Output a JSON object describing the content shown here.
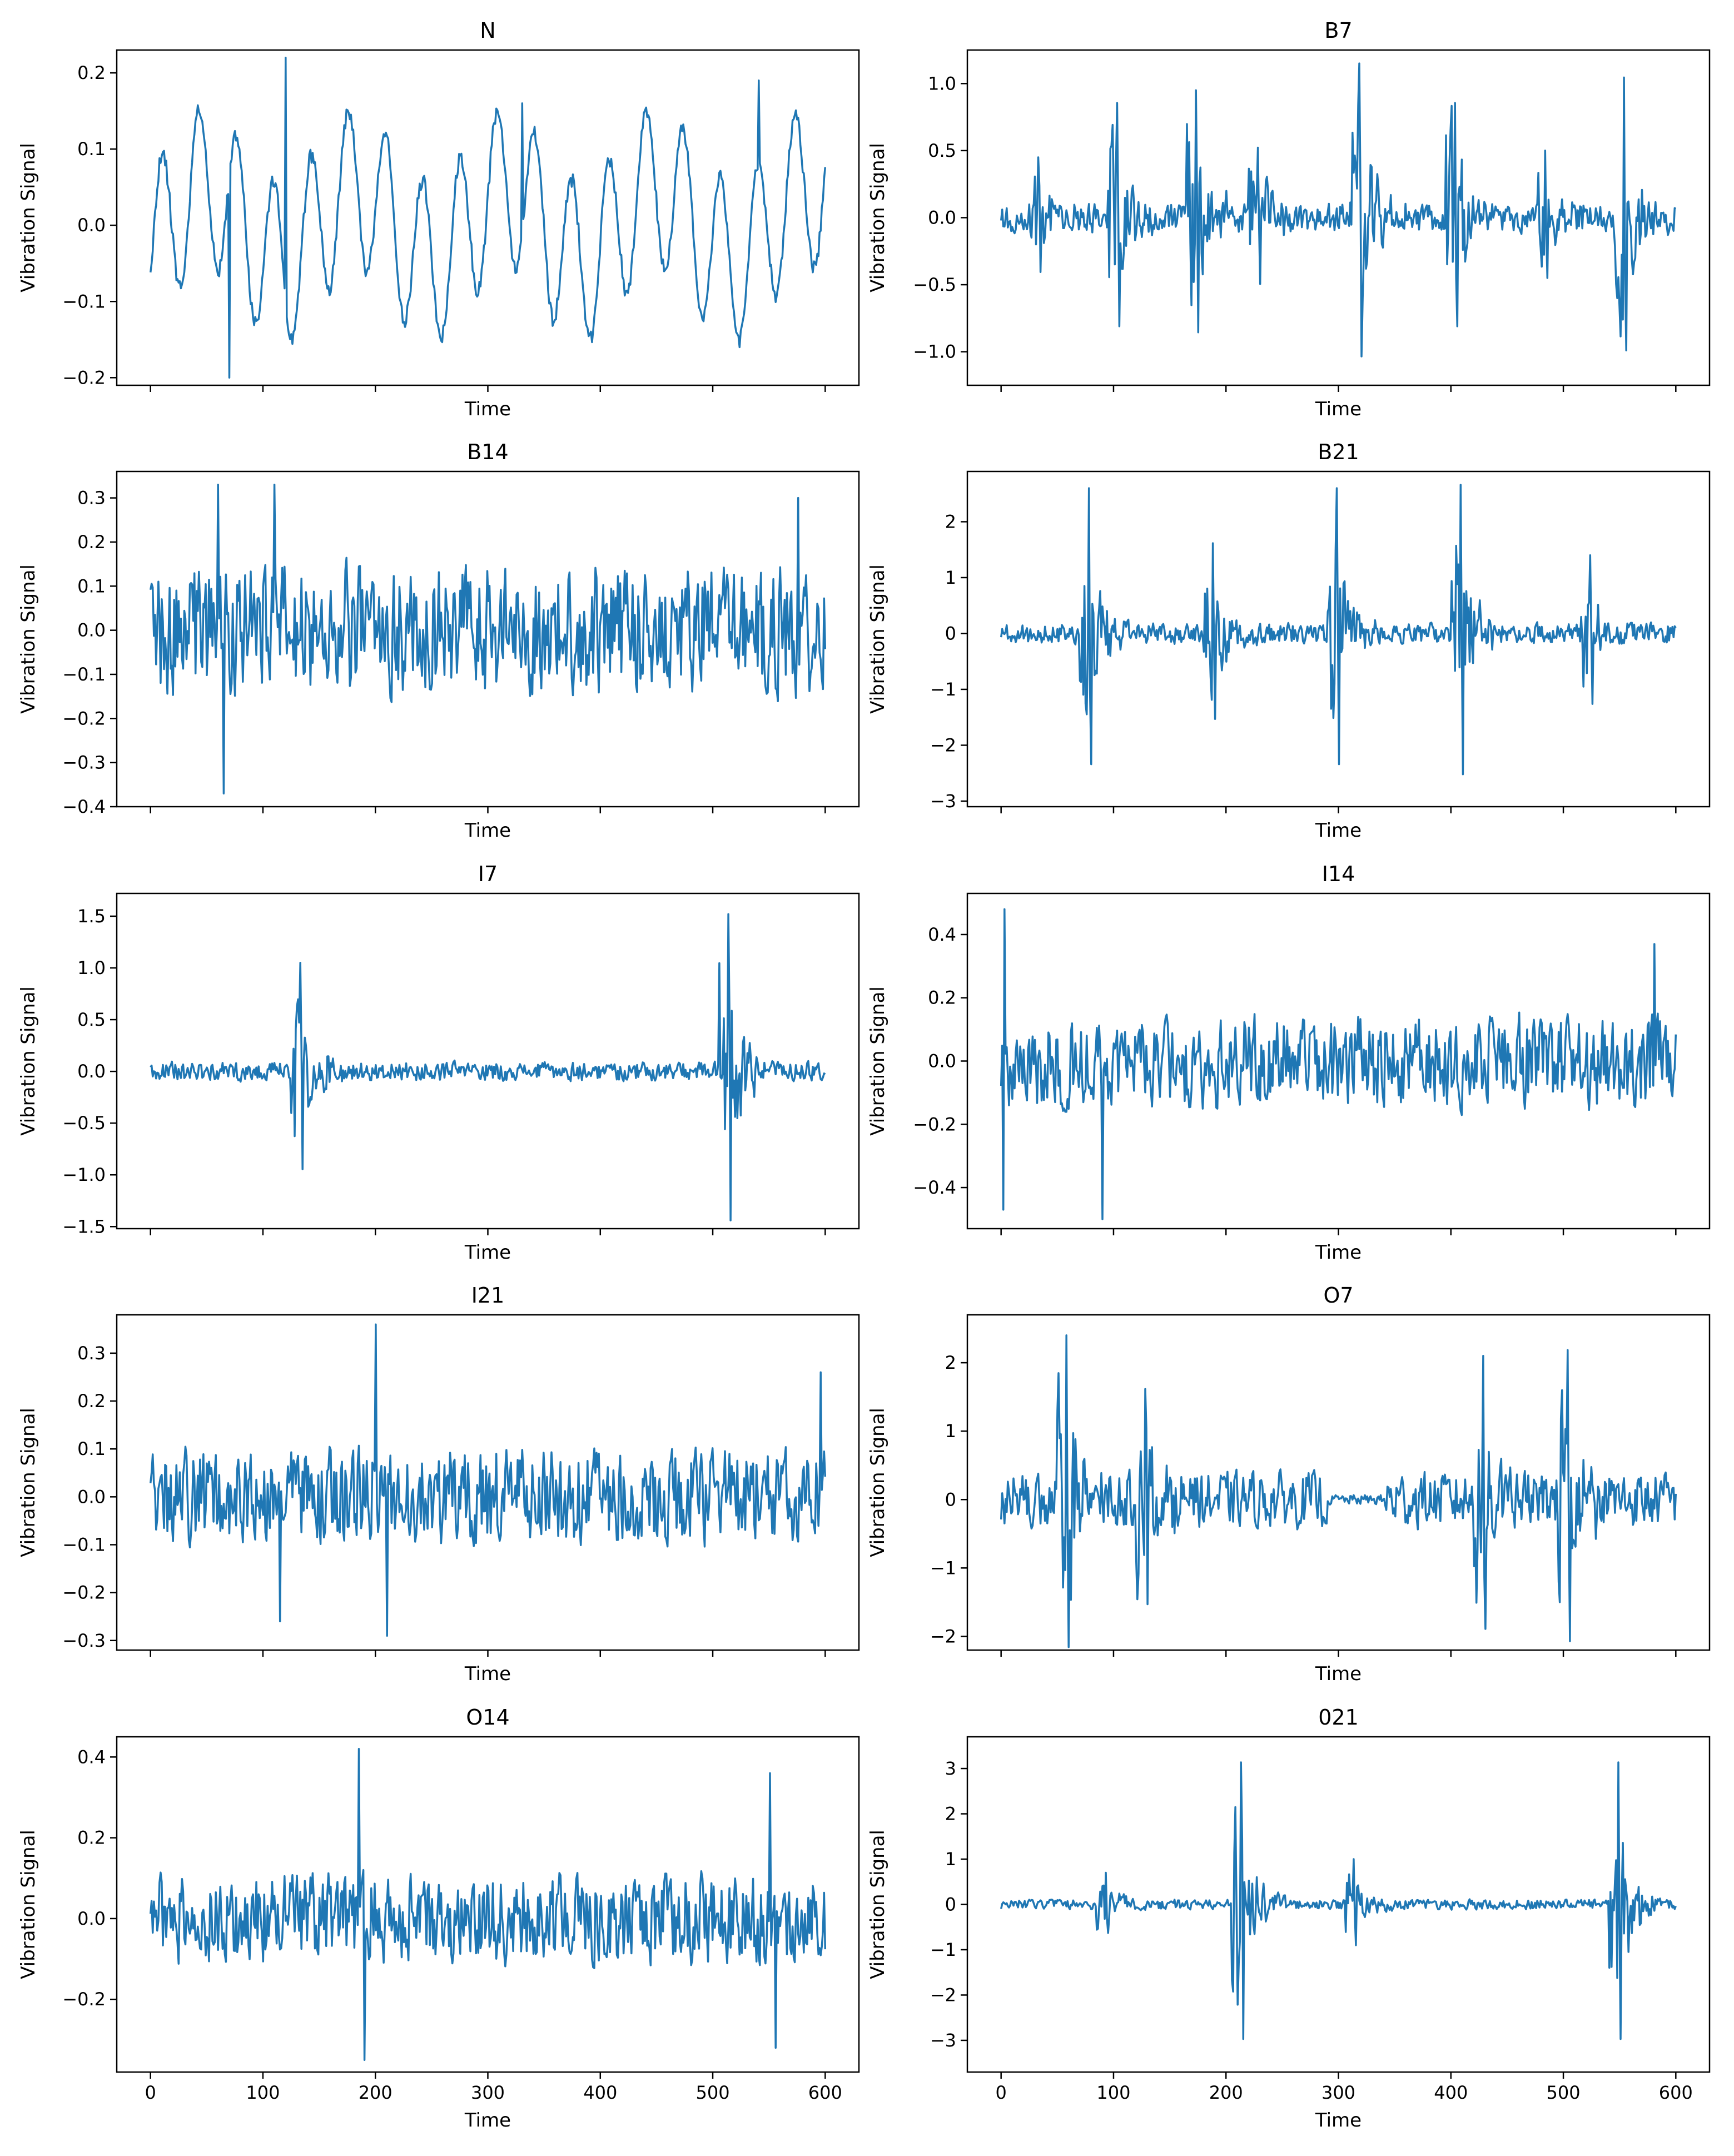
{
  "figure": {
    "line_color": "#1f77b4",
    "x_ticks": [
      0,
      100,
      200,
      300,
      400,
      500,
      600
    ],
    "xlim": [
      -30,
      630
    ],
    "n_points": 600
  },
  "chart_data": [
    {
      "type": "line",
      "title": "N",
      "xlabel": "Time",
      "ylabel": "Vibration Signal",
      "ylim": [
        -0.21,
        0.23
      ],
      "yticks": [
        -0.2,
        -0.1,
        0.0,
        0.1,
        0.2
      ],
      "ytick_labels": [
        "−0.2",
        "−0.1",
        "0.0",
        "0.1",
        "0.2"
      ],
      "x": [
        0,
        600
      ],
      "profile": "periodic",
      "amplitude": 0.14,
      "events": [
        [
          120,
          0.22
        ],
        [
          70,
          -0.2
        ],
        [
          330,
          0.16
        ],
        [
          540,
          0.19
        ]
      ],
      "seed": 11
    },
    {
      "type": "line",
      "title": "B7",
      "xlabel": "Time",
      "ylabel": "Vibration Signal",
      "ylim": [
        -1.25,
        1.25
      ],
      "yticks": [
        -1.0,
        -0.5,
        0.0,
        0.5,
        1.0
      ],
      "ytick_labels": [
        "−1.0",
        "−0.5",
        "0.0",
        "0.5",
        "1.0"
      ],
      "x": [
        0,
        600
      ],
      "profile": "bursts",
      "amplitude": 0.12,
      "bursts": [
        [
          30,
          0.45
        ],
        [
          100,
          0.9
        ],
        [
          170,
          0.95
        ],
        [
          225,
          0.55
        ],
        [
          315,
          1.15
        ],
        [
          400,
          0.9
        ],
        [
          480,
          0.5
        ],
        [
          550,
          1.1
        ]
      ],
      "seed": 12
    },
    {
      "type": "line",
      "title": "B14",
      "xlabel": "Time",
      "ylabel": "Vibration Signal",
      "ylim": [
        -0.4,
        0.36
      ],
      "yticks": [
        -0.4,
        -0.3,
        -0.2,
        -0.1,
        0.0,
        0.1,
        0.2,
        0.3
      ],
      "ytick_labels": [
        "−0.4",
        "−0.3",
        "−0.2",
        "−0.1",
        "0.0",
        "0.1",
        "0.2",
        "0.3"
      ],
      "x": [
        0,
        600
      ],
      "profile": "noise",
      "amplitude": 0.16,
      "events": [
        [
          60,
          0.33
        ],
        [
          65,
          -0.37
        ],
        [
          110,
          0.33
        ],
        [
          575,
          0.3
        ]
      ],
      "seed": 13
    },
    {
      "type": "line",
      "title": "B21",
      "xlabel": "Time",
      "ylabel": "Vibration Signal",
      "ylim": [
        -3.1,
        2.9
      ],
      "yticks": [
        -3,
        -2,
        -1,
        0,
        1,
        2
      ],
      "ytick_labels": [
        "−3",
        "−2",
        "−1",
        "0",
        "1",
        "2"
      ],
      "x": [
        0,
        600
      ],
      "profile": "bursts",
      "amplitude": 0.2,
      "bursts": [
        [
          75,
          2.6
        ],
        [
          185,
          1.7
        ],
        [
          295,
          2.6
        ],
        [
          405,
          2.8
        ],
        [
          520,
          1.4
        ]
      ],
      "seed": 14
    },
    {
      "type": "line",
      "title": "I7",
      "xlabel": "Time",
      "ylabel": "Vibration Signal",
      "ylim": [
        -1.52,
        1.72
      ],
      "yticks": [
        -1.5,
        -1.0,
        -0.5,
        0.0,
        0.5,
        1.0,
        1.5
      ],
      "ytick_labels": [
        "−1.5",
        "−1.0",
        "−0.5",
        "0.0",
        "0.5",
        "1.0",
        "1.5"
      ],
      "x": [
        0,
        600
      ],
      "profile": "bursts",
      "amplitude": 0.1,
      "bursts": [
        [
          130,
          1.05
        ],
        [
          510,
          1.6
        ]
      ],
      "seed": 15
    },
    {
      "type": "line",
      "title": "I14",
      "xlabel": "Time",
      "ylabel": "Vibration Signal",
      "ylim": [
        -0.53,
        0.53
      ],
      "yticks": [
        -0.4,
        -0.2,
        0.0,
        0.2,
        0.4
      ],
      "ytick_labels": [
        "−0.4",
        "−0.2",
        "0.0",
        "0.2",
        "0.4"
      ],
      "x": [
        0,
        600
      ],
      "profile": "noise",
      "amplitude": 0.16,
      "events": [
        [
          3,
          0.48
        ],
        [
          2,
          -0.47
        ],
        [
          90,
          -0.5
        ],
        [
          580,
          0.37
        ]
      ],
      "seed": 16
    },
    {
      "type": "line",
      "title": "I21",
      "xlabel": "Time",
      "ylabel": "Vibration Signal",
      "ylim": [
        -0.32,
        0.38
      ],
      "yticks": [
        -0.3,
        -0.2,
        -0.1,
        0.0,
        0.1,
        0.2,
        0.3
      ],
      "ytick_labels": [
        "−0.3",
        "−0.2",
        "−0.1",
        "0.0",
        "0.1",
        "0.2",
        "0.3"
      ],
      "x": [
        0,
        600
      ],
      "profile": "noise",
      "amplitude": 0.11,
      "events": [
        [
          200,
          0.36
        ],
        [
          210,
          -0.29
        ],
        [
          115,
          -0.26
        ],
        [
          595,
          0.26
        ]
      ],
      "seed": 17
    },
    {
      "type": "line",
      "title": "O7",
      "xlabel": "Time",
      "ylabel": "Vibration Signal",
      "ylim": [
        -2.2,
        2.7
      ],
      "yticks": [
        -2,
        -1,
        0,
        1,
        2
      ],
      "ytick_labels": [
        "−2",
        "−1",
        "0",
        "1",
        "2"
      ],
      "x": [
        0,
        600
      ],
      "profile": "bursts",
      "amplitude": 0.45,
      "bursts": [
        [
          55,
          2.4
        ],
        [
          125,
          1.7
        ],
        [
          425,
          2.1
        ],
        [
          500,
          2.3
        ]
      ],
      "quiet": [
        [
          290,
          340
        ]
      ],
      "seed": 18
    },
    {
      "type": "line",
      "title": "O14",
      "xlabel": "Time",
      "ylabel": "Vibration Signal",
      "ylim": [
        -0.38,
        0.45
      ],
      "yticks": [
        -0.2,
        0.0,
        0.2,
        0.4
      ],
      "ytick_labels": [
        "−0.2",
        "0.0",
        "0.2",
        "0.4"
      ],
      "x": [
        0,
        600
      ],
      "profile": "noise",
      "amplitude": 0.12,
      "events": [
        [
          185,
          0.42
        ],
        [
          190,
          -0.35
        ],
        [
          550,
          0.36
        ],
        [
          555,
          -0.32
        ]
      ],
      "seed": 19
    },
    {
      "type": "line",
      "title": "021",
      "xlabel": "Time",
      "ylabel": "Vibration Signal",
      "ylim": [
        -3.7,
        3.7
      ],
      "yticks": [
        -3,
        -2,
        -1,
        0,
        1,
        2,
        3
      ],
      "ytick_labels": [
        "−3",
        "−2",
        "−1",
        "0",
        "1",
        "2",
        "3"
      ],
      "x": [
        0,
        600
      ],
      "profile": "bursts",
      "amplitude": 0.12,
      "bursts": [
        [
          90,
          0.7
        ],
        [
          210,
          3.3
        ],
        [
          310,
          1.0
        ],
        [
          545,
          3.3
        ]
      ],
      "seed": 20
    }
  ]
}
